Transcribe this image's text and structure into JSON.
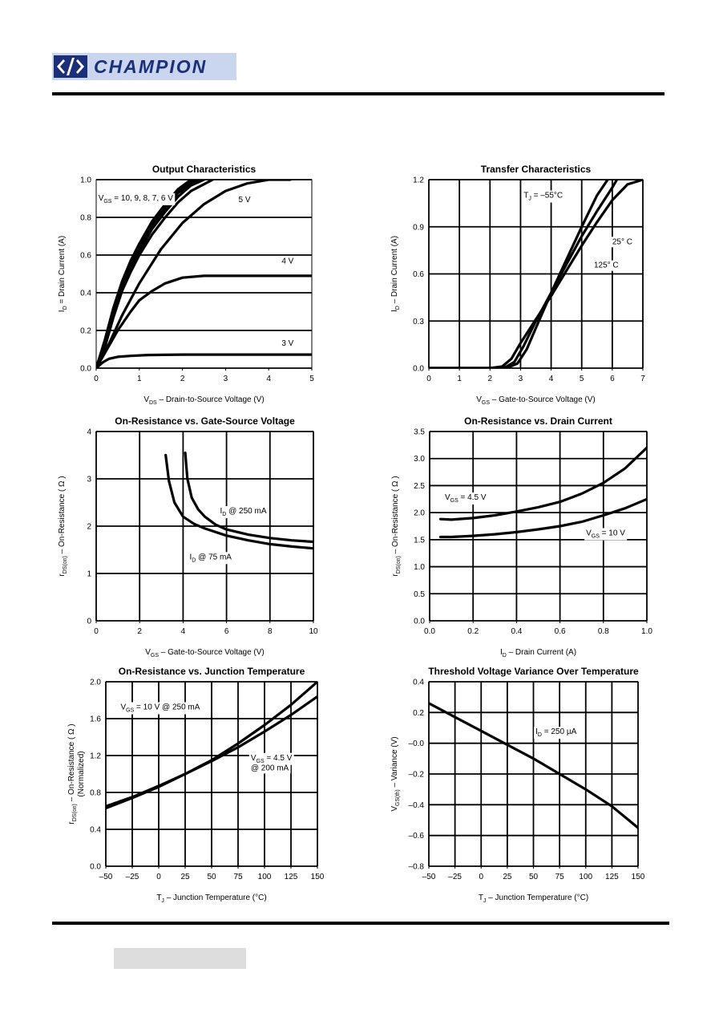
{
  "header": {
    "logo_text": "CHAMPION"
  },
  "colors": {
    "ink": "#000000",
    "logo_blue": "#1c2f7a",
    "logo_bg": "#c9d6ee",
    "footer_box": "#dddddd"
  },
  "chart_data": [
    {
      "type": "line",
      "title": "Output Characteristics",
      "xlabel": {
        "pre": "V",
        "sub": "DS",
        "post": "  –  Drain-to-Source Voltage (V)"
      },
      "ylabel": {
        "pre": "I",
        "sub": "D",
        "post": " = Drain Current (A)"
      },
      "xlim": [
        0,
        5
      ],
      "ylim": [
        0,
        1.0
      ],
      "xticks": [
        0,
        1,
        2,
        3,
        4,
        5
      ],
      "xtick_labels": [
        "0",
        "1",
        "2",
        "3",
        "4",
        "5"
      ],
      "yticks": [
        0,
        0.2,
        0.4,
        0.6,
        0.8,
        1.0
      ],
      "ytick_labels": [
        "0.0",
        "0.2",
        "0.4",
        "0.6",
        "0.8",
        "1.0"
      ],
      "grid": "horizontal",
      "series": [
        {
          "x": [
            0,
            0.2,
            0.4,
            0.6,
            0.8,
            1.0,
            1.3,
            1.6,
            1.9,
            2.2
          ],
          "y": [
            0,
            0.15,
            0.32,
            0.46,
            0.57,
            0.66,
            0.78,
            0.87,
            0.95,
            1.0
          ]
        },
        {
          "x": [
            0,
            0.2,
            0.4,
            0.6,
            0.8,
            1.0,
            1.3,
            1.6,
            1.9,
            2.3
          ],
          "y": [
            0,
            0.14,
            0.31,
            0.45,
            0.56,
            0.65,
            0.77,
            0.86,
            0.94,
            1.0
          ]
        },
        {
          "x": [
            0,
            0.2,
            0.4,
            0.6,
            0.8,
            1.0,
            1.3,
            1.6,
            1.9,
            2.4
          ],
          "y": [
            0,
            0.13,
            0.3,
            0.44,
            0.55,
            0.64,
            0.76,
            0.85,
            0.93,
            1.0
          ]
        },
        {
          "x": [
            0,
            0.2,
            0.4,
            0.6,
            0.8,
            1.0,
            1.3,
            1.6,
            1.9,
            2.2,
            2.5
          ],
          "y": [
            0,
            0.12,
            0.29,
            0.43,
            0.53,
            0.62,
            0.74,
            0.83,
            0.91,
            0.97,
            1.0
          ]
        },
        {
          "x": [
            0,
            0.2,
            0.4,
            0.6,
            0.8,
            1.0,
            1.3,
            1.6,
            1.9,
            2.2,
            2.7
          ],
          "y": [
            0,
            0.11,
            0.27,
            0.41,
            0.51,
            0.6,
            0.71,
            0.8,
            0.88,
            0.94,
            1.0
          ]
        },
        {
          "x": [
            0,
            0.3,
            0.6,
            1.0,
            1.5,
            2.0,
            2.5,
            3.0,
            3.5,
            4.0,
            4.5
          ],
          "y": [
            0,
            0.13,
            0.28,
            0.45,
            0.63,
            0.77,
            0.87,
            0.94,
            0.98,
            1.0,
            1.0
          ]
        },
        {
          "x": [
            0,
            0.2,
            0.5,
            0.8,
            1.0,
            1.3,
            1.6,
            2.0,
            2.5,
            3.0,
            4.0,
            5.0
          ],
          "y": [
            0,
            0.08,
            0.2,
            0.3,
            0.36,
            0.41,
            0.45,
            0.48,
            0.49,
            0.49,
            0.49,
            0.49
          ]
        },
        {
          "x": [
            0,
            0.15,
            0.3,
            0.5,
            0.8,
            1.2,
            2.0,
            3.0,
            5.0
          ],
          "y": [
            0,
            0.03,
            0.05,
            0.06,
            0.065,
            0.07,
            0.072,
            0.072,
            0.072
          ]
        }
      ],
      "annotations": [
        {
          "pre": "V",
          "sub": "GS",
          "post": " = 10, 9, 8, 7, 6 V",
          "x": 0.05,
          "y": 0.89
        },
        {
          "text": "5 V",
          "x": 3.3,
          "y": 0.88
        },
        {
          "text": "4 V",
          "x": 4.3,
          "y": 0.555
        },
        {
          "text": "3 V",
          "x": 4.3,
          "y": 0.12
        }
      ]
    },
    {
      "type": "line",
      "title": "Transfer Characteristics",
      "xlabel": {
        "pre": "V",
        "sub": "GS",
        "post": "  –  Gate-to-Source Voltage (V)"
      },
      "ylabel": {
        "pre": "I",
        "sub": "D",
        "post": " – Drain Current (A)"
      },
      "xlim": [
        0,
        7
      ],
      "ylim": [
        0,
        1.2
      ],
      "xticks": [
        0,
        1,
        2,
        3,
        4,
        5,
        6,
        7
      ],
      "xtick_labels": [
        "0",
        "1",
        "2",
        "3",
        "4",
        "5",
        "6",
        "7"
      ],
      "yticks": [
        0,
        0.3,
        0.6,
        0.9,
        1.2
      ],
      "ytick_labels": [
        "0.0",
        "0.3",
        "0.6",
        "0.9",
        "1.2"
      ],
      "grid": "both",
      "series": [
        {
          "name": "T_J = –55°C",
          "x": [
            0,
            2.0,
            2.6,
            2.9,
            3.2,
            3.6,
            4.0,
            4.5,
            5.0,
            5.5,
            5.85
          ],
          "y": [
            0,
            0,
            0.005,
            0.03,
            0.12,
            0.3,
            0.48,
            0.69,
            0.9,
            1.1,
            1.2
          ]
        },
        {
          "name": "25°C",
          "x": [
            0,
            2.0,
            2.5,
            2.8,
            3.1,
            3.5,
            4.0,
            4.5,
            5.0,
            5.5,
            6.0,
            6.15
          ],
          "y": [
            0,
            0,
            0.005,
            0.04,
            0.14,
            0.3,
            0.48,
            0.66,
            0.84,
            1.0,
            1.15,
            1.2
          ]
        },
        {
          "name": "125°C",
          "x": [
            0,
            2.0,
            2.4,
            2.7,
            3.0,
            3.5,
            4.0,
            4.5,
            5.0,
            5.5,
            6.0,
            6.5,
            7.0
          ],
          "y": [
            0,
            0,
            0.01,
            0.06,
            0.16,
            0.31,
            0.46,
            0.62,
            0.78,
            0.93,
            1.07,
            1.17,
            1.2
          ]
        }
      ],
      "annotations": [
        {
          "pre": "T",
          "sub": "J",
          "post": " = –55°C",
          "x": 3.1,
          "y": 1.085
        },
        {
          "text": "25° C",
          "x": 6.0,
          "y": 0.79
        },
        {
          "text": "125° C",
          "x": 5.4,
          "y": 0.64
        }
      ]
    },
    {
      "type": "line",
      "title": "On-Resistance vs. Gate-Source Voltage",
      "xlabel": {
        "pre": "V",
        "sub": "GS",
        "post": " – Gate-to-Source Voltage (V)"
      },
      "ylabel": {
        "pre": "r",
        "sub": "DS(on)",
        "post": " – On-Resistance ( Ω )"
      },
      "xlim": [
        0,
        10
      ],
      "ylim": [
        0,
        4
      ],
      "xticks": [
        0,
        2,
        4,
        6,
        8,
        10
      ],
      "xtick_labels": [
        "0",
        "2",
        "4",
        "6",
        "8",
        "10"
      ],
      "yticks": [
        0,
        1,
        2,
        3,
        4
      ],
      "ytick_labels": [
        "0",
        "1",
        "2",
        "3",
        "4"
      ],
      "grid": "both",
      "series": [
        {
          "name": "I_D @ 250 mA",
          "x": [
            4.1,
            4.2,
            4.4,
            4.7,
            5.0,
            5.5,
            6.0,
            7.0,
            8.0,
            9.0,
            10.0
          ],
          "y": [
            3.55,
            3.0,
            2.6,
            2.35,
            2.2,
            2.03,
            1.93,
            1.82,
            1.75,
            1.7,
            1.67
          ]
        },
        {
          "name": "I_D @ 75 mA",
          "x": [
            3.2,
            3.35,
            3.6,
            4.0,
            4.5,
            5.0,
            6.0,
            7.0,
            8.0,
            9.0,
            10.0
          ],
          "y": [
            3.5,
            2.95,
            2.5,
            2.2,
            2.05,
            1.95,
            1.8,
            1.7,
            1.62,
            1.57,
            1.53
          ]
        }
      ],
      "annotations": [
        {
          "pre": "I",
          "sub": "D",
          "post": " @ 250 mA",
          "x": 5.7,
          "y": 2.27
        },
        {
          "pre": "I",
          "sub": "D",
          "post": " @ 75 mA",
          "x": 4.3,
          "y": 1.3
        }
      ]
    },
    {
      "type": "line",
      "title": "On-Resistance vs. Drain Current",
      "xlabel": {
        "pre": "I",
        "sub": "D",
        "post": "  –  Drain Current (A)"
      },
      "ylabel": {
        "pre": "r",
        "sub": "DS(on)",
        "post": " – On-Resistance ( Ω )"
      },
      "xlim": [
        0,
        1.0
      ],
      "ylim": [
        0,
        3.5
      ],
      "xticks": [
        0,
        0.2,
        0.4,
        0.6,
        0.8,
        1.0
      ],
      "xtick_labels": [
        "0.0",
        "0.2",
        "0.4",
        "0.6",
        "0.8",
        "1.0"
      ],
      "yticks": [
        0,
        0.5,
        1.0,
        1.5,
        2.0,
        2.5,
        3.0,
        3.5
      ],
      "ytick_labels": [
        "0.0",
        "0.5",
        "1.0",
        "1.5",
        "2.0",
        "2.5",
        "3.0",
        "3.5"
      ],
      "grid": "both",
      "series": [
        {
          "name": "V_GS = 4.5 V",
          "x": [
            0.05,
            0.1,
            0.2,
            0.3,
            0.4,
            0.5,
            0.6,
            0.7,
            0.8,
            0.9,
            1.0
          ],
          "y": [
            1.88,
            1.87,
            1.9,
            1.95,
            2.02,
            2.1,
            2.2,
            2.35,
            2.55,
            2.82,
            3.2
          ]
        },
        {
          "name": "V_GS = 10 V",
          "x": [
            0.05,
            0.1,
            0.2,
            0.3,
            0.4,
            0.5,
            0.6,
            0.7,
            0.8,
            0.9,
            1.0
          ],
          "y": [
            1.55,
            1.55,
            1.57,
            1.6,
            1.64,
            1.69,
            1.75,
            1.83,
            1.95,
            2.08,
            2.25
          ]
        }
      ],
      "annotations": [
        {
          "pre": "V",
          "sub": "GS",
          "post": " = 4.5 V",
          "x": 0.07,
          "y": 2.24
        },
        {
          "pre": "V",
          "sub": "GS",
          "post": " = 10 V",
          "x": 0.72,
          "y": 1.58
        }
      ]
    },
    {
      "type": "line",
      "title": "On-Resistance vs. Junction Temperature",
      "xlabel": {
        "pre": "T",
        "sub": "J",
        "post": "  –  Junction Temperature (°C)"
      },
      "ylabel": {
        "pre": "r",
        "sub": "DS(on)",
        "post": " – On-Resistance ( Ω )",
        "line2": "(Normalized)"
      },
      "xlim": [
        -50,
        150
      ],
      "ylim": [
        0,
        2.0
      ],
      "xticks": [
        -50,
        -25,
        0,
        25,
        50,
        75,
        100,
        125,
        150
      ],
      "xtick_labels": [
        "–50",
        "–25",
        "0",
        "25",
        "50",
        "75",
        "100",
        "125",
        "150"
      ],
      "yticks": [
        0,
        0.4,
        0.8,
        1.2,
        1.6,
        2.0
      ],
      "ytick_labels": [
        "0.0",
        "0.4",
        "0.8",
        "1.2",
        "1.6",
        "2.0"
      ],
      "grid": "both",
      "series": [
        {
          "name": "V_GS = 10 V @ 250 mA",
          "x": [
            -50,
            -25,
            0,
            25,
            50,
            75,
            100,
            125,
            150
          ],
          "y": [
            0.63,
            0.74,
            0.86,
            1.0,
            1.15,
            1.33,
            1.53,
            1.75,
            2.0
          ]
        },
        {
          "name": "V_GS = 4.5 V @ 200 mA",
          "x": [
            -50,
            -25,
            0,
            25,
            50,
            75,
            100,
            125,
            150
          ],
          "y": [
            0.65,
            0.75,
            0.87,
            1.0,
            1.14,
            1.29,
            1.46,
            1.64,
            1.84
          ]
        }
      ],
      "annotations": [
        {
          "pre": "V",
          "sub": "GS",
          "post": " = 10 V @ 250 mA",
          "x": -36,
          "y": 1.7
        },
        {
          "pre": "V",
          "sub": "GS",
          "post": " = 4.5 V",
          "x": 87,
          "y": 1.15
        },
        {
          "text": "@ 200 mA",
          "x": 87,
          "y": 1.04
        }
      ]
    },
    {
      "type": "line",
      "title": "Threshold Voltage Variance Over Temperature",
      "xlabel": {
        "pre": "T",
        "sub": "J",
        "post": "  –  Junction Temperature (°C)"
      },
      "ylabel": {
        "pre": "V",
        "sub": "GS(th)",
        "post": " – Variance (V)"
      },
      "xlim": [
        -50,
        150
      ],
      "ylim": [
        -0.8,
        0.4
      ],
      "xticks": [
        -50,
        -25,
        0,
        25,
        50,
        75,
        100,
        125,
        150
      ],
      "xtick_labels": [
        "–50",
        "–25",
        "0",
        "25",
        "50",
        "75",
        "100",
        "125",
        "150"
      ],
      "yticks": [
        -0.8,
        -0.6,
        -0.4,
        -0.2,
        0,
        0.2,
        0.4
      ],
      "ytick_labels": [
        "–0.8",
        "–0.6",
        "–0.4",
        "–0.2",
        "–0.0",
        "0.2",
        "0.4"
      ],
      "grid": "both",
      "series": [
        {
          "name": "I_D = 250 µA",
          "x": [
            -50,
            -25,
            0,
            25,
            50,
            75,
            100,
            125,
            150
          ],
          "y": [
            0.26,
            0.17,
            0.08,
            -0.01,
            -0.1,
            -0.2,
            -0.3,
            -0.41,
            -0.55
          ]
        }
      ],
      "annotations": [
        {
          "pre": "I",
          "sub": "D",
          "post": " = 250 µA",
          "x": 52,
          "y": 0.06
        }
      ]
    }
  ]
}
